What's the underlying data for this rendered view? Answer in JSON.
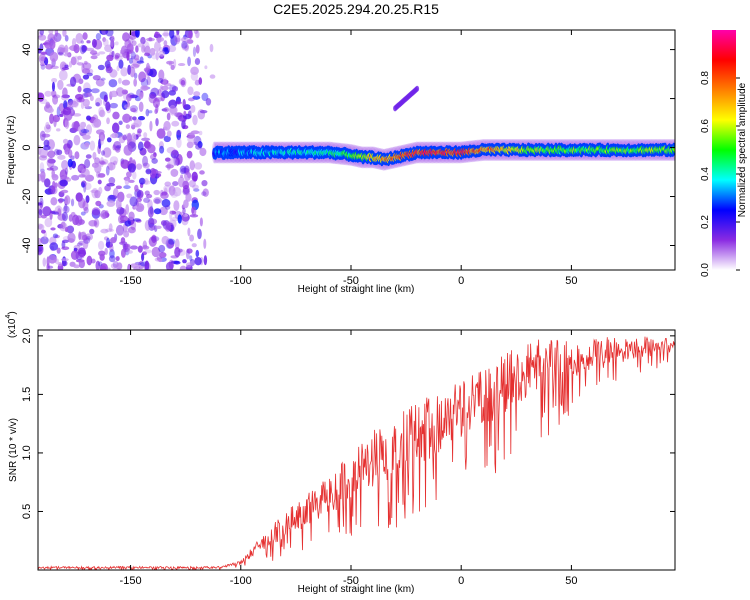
{
  "title": "C2E5.2025.294.20.25.R15",
  "chart_data": [
    {
      "type": "heatmap",
      "xlabel": "Height of straight line (km)",
      "ylabel": "Frequency (Hz)",
      "xlim": [
        -192,
        97
      ],
      "ylim": [
        -50,
        48
      ],
      "xticks": [
        -150,
        -100,
        -50,
        0,
        50
      ],
      "yticks": [
        -40,
        -20,
        0,
        20,
        40
      ],
      "noise_region": {
        "x_from": -192,
        "x_to": -112,
        "y_from": -50,
        "y_to": 48,
        "level": 0.12
      },
      "main_band": {
        "x": [
          -112,
          -100,
          -90,
          -80,
          -70,
          -60,
          -50,
          -45,
          -40,
          -35,
          -30,
          -25,
          -20,
          -10,
          0,
          10,
          20,
          30,
          40,
          50,
          60,
          70,
          80,
          90,
          97
        ],
        "freq": [
          -2,
          -2,
          -2,
          -2,
          -2,
          -2,
          -3,
          -4,
          -4,
          -5,
          -4,
          -3,
          -2,
          -2,
          -2,
          -1,
          -1,
          -1,
          -1,
          -1,
          -1,
          -1,
          -1,
          -1,
          -1
        ],
        "amp": [
          0.3,
          0.32,
          0.38,
          0.4,
          0.42,
          0.45,
          0.5,
          0.62,
          0.72,
          0.78,
          0.82,
          0.86,
          0.9,
          0.92,
          0.9,
          0.82,
          0.72,
          0.62,
          0.58,
          0.56,
          0.55,
          0.55,
          0.55,
          0.6,
          0.55
        ]
      },
      "side_branch": {
        "x": [
          -30,
          -25,
          -20
        ],
        "freq": [
          16,
          20,
          24
        ],
        "amp": 0.15
      },
      "colorbar": {
        "label": "Normalized spectral amplitude",
        "ticks": [
          0.0,
          0.2,
          0.4,
          0.6,
          0.8
        ],
        "range": [
          0,
          1
        ],
        "colors": [
          "#ffffff",
          "#8a2be2",
          "#0000ff",
          "#00ffff",
          "#00ff00",
          "#ffff00",
          "#ff7f00",
          "#ff0000",
          "#ff00aa"
        ]
      }
    },
    {
      "type": "line",
      "xlabel": "Height of straight line (km)",
      "ylabel": "SNR (10 * v/v)",
      "y_multiplier": "(x10",
      "y_multiplier_exp": "4",
      "y_multiplier_close": ")",
      "xlim": [
        -192,
        97
      ],
      "ylim": [
        0,
        2.05
      ],
      "xticks": [
        -150,
        -100,
        -50,
        0,
        50
      ],
      "yticks": [
        0.5,
        1.0,
        1.5,
        2.0
      ],
      "ytick_labels": [
        "0.5",
        "1.0",
        "1.5",
        "2.0"
      ],
      "color": "#e53030",
      "envelope": {
        "x": [
          -192,
          -150,
          -110,
          -100,
          -90,
          -80,
          -70,
          -60,
          -50,
          -40,
          -30,
          -20,
          -10,
          0,
          10,
          20,
          30,
          40,
          50,
          60,
          70,
          80,
          90,
          97
        ],
        "upper": [
          0.03,
          0.03,
          0.03,
          0.08,
          0.3,
          0.5,
          0.65,
          0.8,
          1.0,
          1.2,
          1.3,
          1.45,
          1.5,
          1.65,
          1.75,
          1.85,
          1.95,
          2.0,
          2.0,
          2.0,
          2.0,
          2.0,
          2.0,
          2.0
        ],
        "lower": [
          0.0,
          0.0,
          0.0,
          0.02,
          0.05,
          0.1,
          0.15,
          0.2,
          0.25,
          0.3,
          0.35,
          0.45,
          0.55,
          0.7,
          0.75,
          0.85,
          1.0,
          1.15,
          1.3,
          1.45,
          1.55,
          1.65,
          1.7,
          1.7
        ]
      }
    }
  ]
}
